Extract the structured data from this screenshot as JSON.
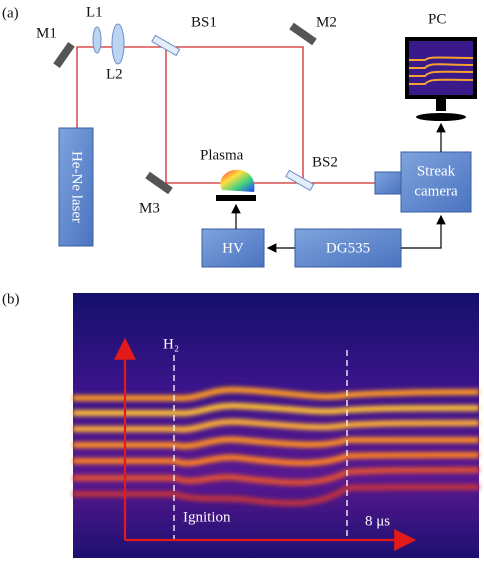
{
  "panel_a": {
    "label": "(a)",
    "m1": "M1",
    "l1": "L1",
    "l2": "L2",
    "bs1": "BS1",
    "m2": "M2",
    "pc": "PC",
    "laser": "He-Ne laser",
    "plasma": "Plasma",
    "m3": "M3",
    "bs2": "BS2",
    "streak_camera": [
      "Streak",
      "camera"
    ],
    "hv": "HV",
    "dg535": "DG535"
  },
  "panel_b": {
    "label": "(b)",
    "gas": "H₂",
    "ignition": "Ignition",
    "time": "8 μs"
  }
}
